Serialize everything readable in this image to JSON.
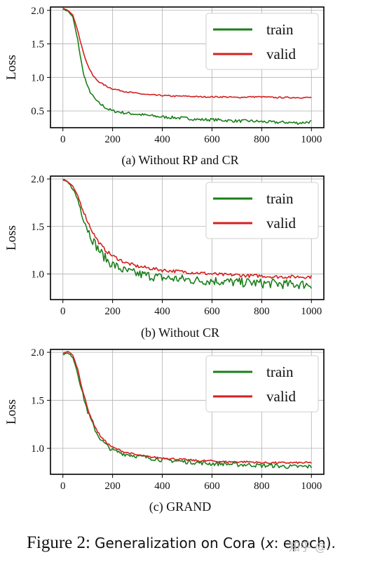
{
  "figure": {
    "caption_label": "Figure 2:",
    "caption_text": "Generalization on Cora (",
    "caption_x": "x",
    "caption_tail": ": epoch).",
    "watermark": "知乎 @"
  },
  "chart_data": [
    {
      "type": "line",
      "subtitle": "(a) Without RP and CR",
      "xlabel": "",
      "ylabel": "Loss",
      "xlim": [
        -50,
        1050
      ],
      "ylim": [
        0.25,
        2.05
      ],
      "xticks": [
        "0",
        "200",
        "400",
        "600",
        "800",
        "1000"
      ],
      "yticks": [
        "0.5",
        "1.0",
        "1.5",
        "2.0"
      ],
      "grid": true,
      "legend_position": "top-right",
      "series": [
        {
          "name": "train",
          "color": "#1a7f1a",
          "x": [
            0,
            20,
            40,
            60,
            80,
            100,
            120,
            140,
            160,
            180,
            200,
            250,
            300,
            350,
            400,
            450,
            500,
            550,
            600,
            650,
            700,
            750,
            800,
            850,
            900,
            950,
            1000
          ],
          "values": [
            2.02,
            1.99,
            1.9,
            1.55,
            1.1,
            0.85,
            0.72,
            0.63,
            0.58,
            0.53,
            0.5,
            0.47,
            0.45,
            0.43,
            0.41,
            0.4,
            0.39,
            0.37,
            0.37,
            0.36,
            0.35,
            0.35,
            0.34,
            0.33,
            0.33,
            0.32,
            0.34
          ]
        },
        {
          "name": "valid",
          "color": "#d42020",
          "x": [
            0,
            20,
            40,
            60,
            80,
            100,
            120,
            140,
            160,
            180,
            200,
            250,
            300,
            350,
            400,
            450,
            500,
            550,
            600,
            650,
            700,
            750,
            800,
            850,
            900,
            950,
            1000
          ],
          "values": [
            2.03,
            2.0,
            1.93,
            1.7,
            1.4,
            1.18,
            1.03,
            0.95,
            0.9,
            0.86,
            0.83,
            0.79,
            0.76,
            0.74,
            0.73,
            0.72,
            0.72,
            0.71,
            0.71,
            0.71,
            0.7,
            0.71,
            0.71,
            0.7,
            0.7,
            0.7,
            0.7
          ]
        }
      ]
    },
    {
      "type": "line",
      "subtitle": "(b) Without CR",
      "xlabel": "",
      "ylabel": "Loss",
      "xlim": [
        -50,
        1050
      ],
      "ylim": [
        0.73,
        2.03
      ],
      "xticks": [
        "0",
        "200",
        "400",
        "600",
        "800",
        "1000"
      ],
      "yticks": [
        "1.0",
        "1.5",
        "2.0"
      ],
      "grid": true,
      "legend_position": "top-right",
      "series": [
        {
          "name": "train",
          "color": "#1a7f1a",
          "x": [
            0,
            20,
            40,
            60,
            80,
            100,
            120,
            140,
            160,
            180,
            200,
            250,
            300,
            350,
            400,
            450,
            500,
            550,
            600,
            650,
            700,
            750,
            800,
            850,
            900,
            950,
            1000
          ],
          "values": [
            1.99,
            1.96,
            1.9,
            1.78,
            1.62,
            1.47,
            1.36,
            1.27,
            1.2,
            1.14,
            1.1,
            1.03,
            1.0,
            0.98,
            0.96,
            0.95,
            0.94,
            0.93,
            0.93,
            0.92,
            0.91,
            0.91,
            0.9,
            0.9,
            0.89,
            0.89,
            0.89
          ]
        },
        {
          "name": "valid",
          "color": "#d42020",
          "x": [
            0,
            20,
            40,
            60,
            80,
            100,
            120,
            140,
            160,
            180,
            200,
            250,
            300,
            350,
            400,
            450,
            500,
            550,
            600,
            650,
            700,
            750,
            800,
            850,
            900,
            950,
            1000
          ],
          "values": [
            1.99,
            1.97,
            1.92,
            1.82,
            1.68,
            1.55,
            1.44,
            1.35,
            1.28,
            1.23,
            1.19,
            1.12,
            1.08,
            1.06,
            1.04,
            1.03,
            1.02,
            1.01,
            1.0,
            0.99,
            0.99,
            0.98,
            0.98,
            0.97,
            0.97,
            0.97,
            0.97
          ]
        }
      ]
    },
    {
      "type": "line",
      "subtitle": "(c) GRAND",
      "xlabel": "",
      "ylabel": "Loss",
      "xlim": [
        -50,
        1050
      ],
      "ylim": [
        0.73,
        2.03
      ],
      "xticks": [
        "0",
        "200",
        "400",
        "600",
        "800",
        "1000"
      ],
      "yticks": [
        "1.0",
        "1.5",
        "2.0"
      ],
      "grid": true,
      "legend_position": "top-right",
      "series": [
        {
          "name": "train",
          "color": "#1a7f1a",
          "x": [
            0,
            20,
            40,
            60,
            80,
            100,
            120,
            140,
            160,
            180,
            200,
            250,
            300,
            350,
            400,
            450,
            500,
            550,
            600,
            650,
            700,
            750,
            800,
            850,
            900,
            950,
            1000
          ],
          "values": [
            1.98,
            1.99,
            1.95,
            1.78,
            1.56,
            1.38,
            1.25,
            1.14,
            1.07,
            1.02,
            0.98,
            0.94,
            0.92,
            0.9,
            0.88,
            0.87,
            0.86,
            0.85,
            0.84,
            0.84,
            0.83,
            0.83,
            0.82,
            0.82,
            0.81,
            0.81,
            0.81
          ]
        },
        {
          "name": "valid",
          "color": "#d42020",
          "x": [
            0,
            20,
            40,
            60,
            80,
            100,
            120,
            140,
            160,
            180,
            200,
            250,
            300,
            350,
            400,
            450,
            500,
            550,
            600,
            650,
            700,
            750,
            800,
            850,
            900,
            950,
            1000
          ],
          "values": [
            1.99,
            2.01,
            1.97,
            1.82,
            1.6,
            1.41,
            1.28,
            1.17,
            1.1,
            1.05,
            1.01,
            0.96,
            0.93,
            0.91,
            0.9,
            0.89,
            0.88,
            0.87,
            0.87,
            0.86,
            0.86,
            0.86,
            0.85,
            0.85,
            0.85,
            0.85,
            0.85
          ]
        }
      ]
    }
  ]
}
